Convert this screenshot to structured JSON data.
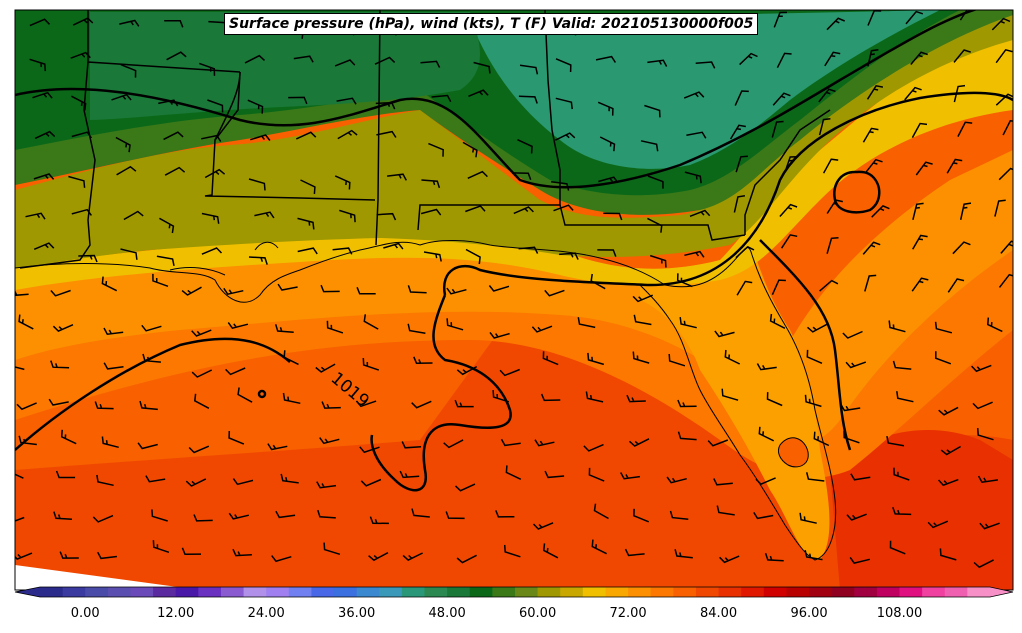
{
  "map": {
    "title": "Surface pressure (hPa), wind (kts), T (F) Valid: 202105130000f005",
    "contour_label": "1019",
    "regions_shown": [
      "Gulf of Mexico",
      "Florida",
      "Alabama",
      "Mississippi",
      "Louisiana",
      "Georgia"
    ],
    "layers": [
      "temperature-fill",
      "isobars",
      "wind-barbs",
      "state-borders",
      "coastlines"
    ]
  },
  "colorbar": {
    "tick_labels": [
      "0.00",
      "12.00",
      "24.00",
      "36.00",
      "48.00",
      "60.00",
      "72.00",
      "84.00",
      "96.00",
      "108.00"
    ],
    "range": [
      -6,
      120
    ],
    "colors": [
      "#2b2b8c",
      "#3a3aa0",
      "#4a4aa8",
      "#5a4fb0",
      "#6a4ab8",
      "#5a2aa0",
      "#4a18a8",
      "#6a30c0",
      "#8a5ad0",
      "#b090e8",
      "#a080f0",
      "#7080f0",
      "#4868e8",
      "#3a70e0",
      "#3a88d0",
      "#3a98b8",
      "#2a9878",
      "#2a8850",
      "#1a7838",
      "#0a6818",
      "#3a7818",
      "#6a8818",
      "#a09800",
      "#c8a800",
      "#f0c000",
      "#f8a800",
      "#fc9000",
      "#fc7800",
      "#f86000",
      "#f04800",
      "#e83000",
      "#e01800",
      "#d00000",
      "#b80000",
      "#a00010",
      "#900020",
      "#a00040",
      "#c00060",
      "#e01080",
      "#f040a0",
      "#f060b0",
      "#f890c8"
    ]
  }
}
